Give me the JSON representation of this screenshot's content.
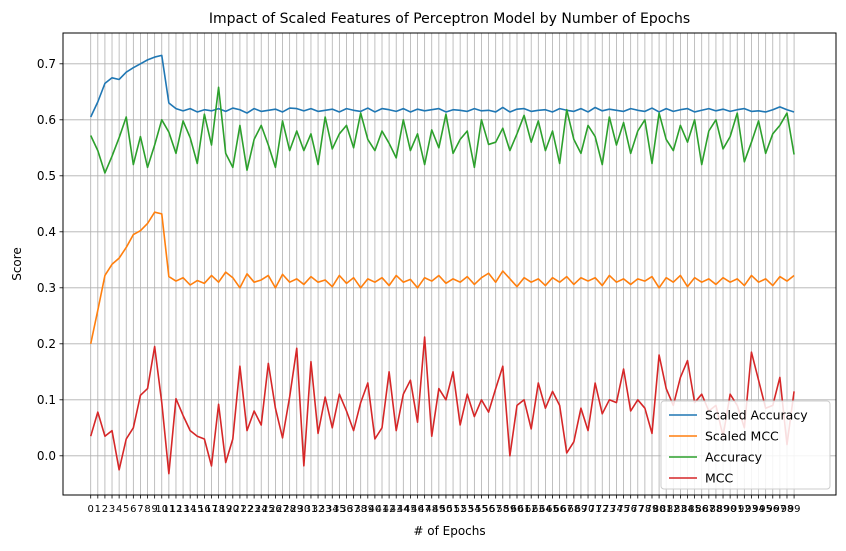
{
  "chart_data": {
    "type": "line",
    "title": "Impact of Scaled Features of Perceptron Model by Number of Epochs",
    "xlabel": "# of Epochs",
    "ylabel": "Score",
    "xlim": [
      -3.9,
      104.9
    ],
    "ylim": [
      -0.07,
      0.755
    ],
    "x_range": [
      0,
      99
    ],
    "x_tick_labels": [
      "0",
      "1",
      "2",
      "3",
      "4",
      "5",
      "6",
      "7",
      "8",
      "9",
      "10",
      "11",
      "12",
      "13",
      "14",
      "15",
      "16",
      "17",
      "18",
      "19",
      "20",
      "21",
      "22",
      "23",
      "24",
      "25",
      "26",
      "27",
      "28",
      "29",
      "30",
      "31",
      "32",
      "33",
      "34",
      "35",
      "36",
      "37",
      "38",
      "39",
      "40",
      "41",
      "42",
      "43",
      "44",
      "45",
      "46",
      "47",
      "48",
      "49",
      "50",
      "51",
      "52",
      "53",
      "54",
      "55",
      "56",
      "57",
      "58",
      "59",
      "60",
      "61",
      "62",
      "63",
      "64",
      "65",
      "66",
      "67",
      "68",
      "69",
      "70",
      "71",
      "72",
      "73",
      "74",
      "75",
      "76",
      "77",
      "78",
      "79",
      "80",
      "81",
      "82",
      "83",
      "84",
      "85",
      "86",
      "87",
      "88",
      "89",
      "90",
      "91",
      "92",
      "93",
      "94",
      "95",
      "96",
      "97",
      "98",
      "99"
    ],
    "y_ticks": [
      0.0,
      0.1,
      0.2,
      0.3,
      0.4,
      0.5,
      0.6,
      0.7
    ],
    "y_tick_labels": [
      "0.0",
      "0.1",
      "0.2",
      "0.3",
      "0.4",
      "0.5",
      "0.6",
      "0.7"
    ],
    "grid": true,
    "legend_position": "bottom-right",
    "series": [
      {
        "name": "Scaled Accuracy",
        "color": "#1f77b4",
        "values": [
          0.605,
          0.632,
          0.665,
          0.675,
          0.672,
          0.685,
          0.693,
          0.7,
          0.707,
          0.712,
          0.715,
          0.63,
          0.62,
          0.616,
          0.62,
          0.614,
          0.618,
          0.616,
          0.62,
          0.615,
          0.621,
          0.618,
          0.612,
          0.62,
          0.615,
          0.617,
          0.619,
          0.614,
          0.621,
          0.62,
          0.616,
          0.62,
          0.615,
          0.617,
          0.619,
          0.614,
          0.62,
          0.617,
          0.615,
          0.621,
          0.614,
          0.62,
          0.618,
          0.615,
          0.62,
          0.614,
          0.619,
          0.616,
          0.618,
          0.62,
          0.614,
          0.618,
          0.617,
          0.615,
          0.62,
          0.616,
          0.617,
          0.614,
          0.622,
          0.614,
          0.619,
          0.62,
          0.615,
          0.617,
          0.618,
          0.614,
          0.62,
          0.617,
          0.615,
          0.62,
          0.614,
          0.622,
          0.616,
          0.619,
          0.617,
          0.615,
          0.62,
          0.617,
          0.615,
          0.621,
          0.614,
          0.62,
          0.615,
          0.618,
          0.62,
          0.614,
          0.617,
          0.62,
          0.616,
          0.619,
          0.615,
          0.618,
          0.62,
          0.615,
          0.616,
          0.614,
          0.618,
          0.623,
          0.618,
          0.614
        ]
      },
      {
        "name": "Scaled MCC",
        "color": "#ff7f0e",
        "values": [
          0.2,
          0.26,
          0.322,
          0.342,
          0.353,
          0.372,
          0.395,
          0.402,
          0.415,
          0.435,
          0.432,
          0.32,
          0.312,
          0.318,
          0.305,
          0.313,
          0.308,
          0.322,
          0.31,
          0.328,
          0.318,
          0.3,
          0.325,
          0.31,
          0.314,
          0.322,
          0.3,
          0.324,
          0.31,
          0.316,
          0.306,
          0.32,
          0.31,
          0.314,
          0.302,
          0.322,
          0.308,
          0.318,
          0.3,
          0.316,
          0.31,
          0.318,
          0.304,
          0.322,
          0.31,
          0.315,
          0.3,
          0.318,
          0.312,
          0.322,
          0.308,
          0.316,
          0.31,
          0.32,
          0.306,
          0.318,
          0.326,
          0.31,
          0.33,
          0.316,
          0.302,
          0.318,
          0.31,
          0.316,
          0.304,
          0.318,
          0.31,
          0.32,
          0.306,
          0.318,
          0.312,
          0.318,
          0.304,
          0.322,
          0.31,
          0.316,
          0.306,
          0.316,
          0.312,
          0.32,
          0.3,
          0.318,
          0.31,
          0.322,
          0.302,
          0.318,
          0.31,
          0.316,
          0.306,
          0.318,
          0.31,
          0.316,
          0.304,
          0.322,
          0.31,
          0.316,
          0.304,
          0.32,
          0.312,
          0.322
        ]
      },
      {
        "name": "Accuracy",
        "color": "#2ca02c",
        "values": [
          0.572,
          0.545,
          0.505,
          0.535,
          0.568,
          0.605,
          0.52,
          0.57,
          0.515,
          0.555,
          0.6,
          0.578,
          0.54,
          0.598,
          0.568,
          0.522,
          0.61,
          0.555,
          0.658,
          0.54,
          0.515,
          0.59,
          0.51,
          0.565,
          0.59,
          0.555,
          0.515,
          0.598,
          0.545,
          0.58,
          0.545,
          0.575,
          0.52,
          0.605,
          0.548,
          0.575,
          0.59,
          0.55,
          0.612,
          0.565,
          0.545,
          0.58,
          0.558,
          0.532,
          0.6,
          0.545,
          0.575,
          0.52,
          0.582,
          0.55,
          0.61,
          0.54,
          0.565,
          0.58,
          0.515,
          0.6,
          0.556,
          0.56,
          0.585,
          0.545,
          0.575,
          0.608,
          0.56,
          0.598,
          0.545,
          0.58,
          0.522,
          0.618,
          0.565,
          0.54,
          0.59,
          0.57,
          0.52,
          0.605,
          0.555,
          0.595,
          0.54,
          0.58,
          0.6,
          0.522,
          0.612,
          0.565,
          0.545,
          0.59,
          0.56,
          0.6,
          0.52,
          0.58,
          0.6,
          0.548,
          0.57,
          0.612,
          0.525,
          0.56,
          0.598,
          0.54,
          0.575,
          0.59,
          0.612,
          0.538
        ]
      },
      {
        "name": "MCC",
        "color": "#d62728",
        "values": [
          0.035,
          0.078,
          0.035,
          0.045,
          -0.025,
          0.03,
          0.05,
          0.108,
          0.12,
          0.195,
          0.095,
          -0.032,
          0.102,
          0.072,
          0.045,
          0.035,
          0.03,
          -0.018,
          0.092,
          -0.012,
          0.03,
          0.16,
          0.045,
          0.08,
          0.055,
          0.165,
          0.085,
          0.032,
          0.105,
          0.192,
          -0.018,
          0.168,
          0.04,
          0.105,
          0.05,
          0.11,
          0.08,
          0.045,
          0.095,
          0.13,
          0.03,
          0.05,
          0.15,
          0.045,
          0.11,
          0.135,
          0.06,
          0.212,
          0.035,
          0.12,
          0.1,
          0.15,
          0.055,
          0.11,
          0.07,
          0.1,
          0.078,
          0.12,
          0.16,
          0.0,
          0.09,
          0.1,
          0.048,
          0.13,
          0.085,
          0.115,
          0.09,
          0.005,
          0.025,
          0.085,
          0.045,
          0.13,
          0.075,
          0.1,
          0.095,
          0.155,
          0.08,
          0.1,
          0.085,
          0.04,
          0.18,
          0.12,
          0.09,
          0.14,
          0.17,
          0.095,
          0.11,
          0.08,
          0.09,
          0.035,
          0.11,
          0.09,
          0.05,
          0.185,
          0.135,
          0.085,
          0.09,
          0.14,
          0.02,
          0.115
        ]
      }
    ]
  }
}
